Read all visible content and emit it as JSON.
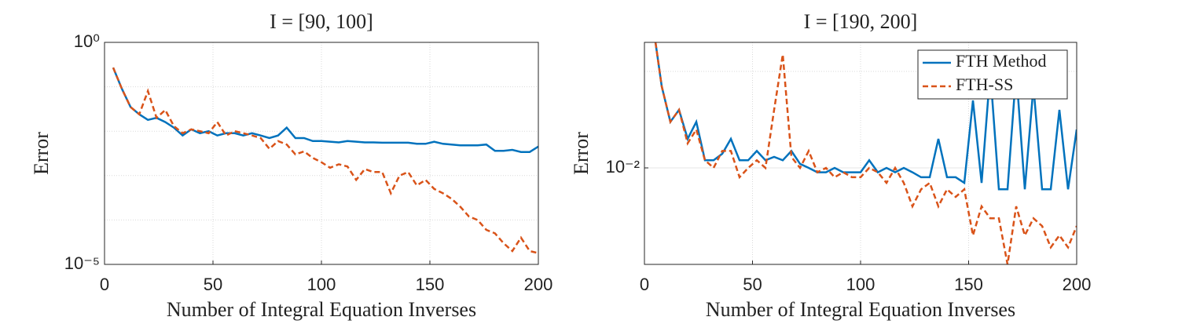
{
  "chart_data": [
    {
      "type": "line",
      "title": "I = [90, 100]",
      "xlabel": "Number of Integral Equation Inverses",
      "ylabel": "Error",
      "x": [
        4,
        8,
        12,
        16,
        20,
        24,
        28,
        32,
        36,
        40,
        44,
        48,
        52,
        56,
        60,
        64,
        68,
        72,
        76,
        80,
        84,
        88,
        92,
        96,
        100,
        104,
        108,
        112,
        116,
        120,
        124,
        128,
        132,
        136,
        140,
        144,
        148,
        152,
        156,
        160,
        164,
        168,
        172,
        176,
        180,
        184,
        188,
        192,
        196,
        200
      ],
      "series": [
        {
          "name": "FTH Method",
          "color": "#0072bd",
          "dash": false,
          "values": [
            0.27,
            0.09,
            0.035,
            0.024,
            0.018,
            0.02,
            0.016,
            0.012,
            0.008,
            0.011,
            0.009,
            0.01,
            0.008,
            0.009,
            0.009,
            0.008,
            0.009,
            0.008,
            0.007,
            0.008,
            0.012,
            0.007,
            0.007,
            0.006,
            0.006,
            0.0058,
            0.0056,
            0.006,
            0.0058,
            0.0056,
            0.0056,
            0.0055,
            0.0055,
            0.0055,
            0.0055,
            0.0052,
            0.0052,
            0.0058,
            0.0052,
            0.005,
            0.0048,
            0.0048,
            0.0048,
            0.005,
            0.0036,
            0.0036,
            0.0038,
            0.0034,
            0.0034,
            0.0045
          ]
        },
        {
          "name": "FTH-SS",
          "color": "#d95319",
          "dash": true,
          "values": [
            0.27,
            0.09,
            0.035,
            0.024,
            0.08,
            0.02,
            0.03,
            0.013,
            0.009,
            0.011,
            0.01,
            0.009,
            0.016,
            0.008,
            0.01,
            0.009,
            0.008,
            0.007,
            0.004,
            0.006,
            0.005,
            0.003,
            0.0035,
            0.0025,
            0.002,
            0.0015,
            0.0018,
            0.0016,
            0.0008,
            0.0014,
            0.0012,
            0.0012,
            0.0004,
            0.001,
            0.0012,
            0.0006,
            0.0008,
            0.0005,
            0.0004,
            0.0003,
            0.0002,
            0.00012,
            0.0001,
            6e-05,
            5e-05,
            3e-05,
            2e-05,
            4e-05,
            2e-05,
            1.8e-05
          ]
        }
      ],
      "xlim": [
        0,
        200
      ],
      "xticks": [
        0,
        50,
        100,
        150,
        200
      ],
      "ylim": [
        1e-05,
        1
      ],
      "yticks": [
        {
          "value": 1e-05,
          "label": "10⁻⁵"
        },
        {
          "value": 1,
          "label": "10⁰"
        }
      ],
      "yminor": [
        0.0001,
        0.001,
        0.01,
        0.1
      ],
      "log_scale": true,
      "grid": true
    },
    {
      "type": "line",
      "title": "I = [190, 200]",
      "xlabel": "Number of Integral Equation Inverses",
      "ylabel": "Error",
      "x": [
        4,
        8,
        12,
        16,
        20,
        24,
        28,
        32,
        36,
        40,
        44,
        48,
        52,
        56,
        60,
        64,
        68,
        72,
        76,
        80,
        84,
        88,
        92,
        96,
        100,
        104,
        108,
        112,
        116,
        120,
        124,
        128,
        132,
        136,
        140,
        144,
        148,
        152,
        156,
        160,
        164,
        168,
        172,
        176,
        180,
        184,
        188,
        192,
        196,
        200
      ],
      "series": [
        {
          "name": "FTH Method",
          "color": "#0072bd",
          "dash": false,
          "values": [
            0.3,
            0.07,
            0.03,
            0.04,
            0.02,
            0.03,
            0.012,
            0.012,
            0.014,
            0.02,
            0.012,
            0.012,
            0.015,
            0.012,
            0.013,
            0.012,
            0.015,
            0.011,
            0.01,
            0.009,
            0.009,
            0.01,
            0.009,
            0.009,
            0.009,
            0.012,
            0.009,
            0.01,
            0.009,
            0.01,
            0.009,
            0.008,
            0.008,
            0.02,
            0.008,
            0.008,
            0.007,
            0.05,
            0.007,
            0.1,
            0.006,
            0.006,
            0.1,
            0.006,
            0.07,
            0.006,
            0.006,
            0.04,
            0.006,
            0.025
          ]
        },
        {
          "name": "FTH-SS",
          "color": "#d95319",
          "dash": true,
          "values": [
            0.3,
            0.07,
            0.03,
            0.04,
            0.018,
            0.025,
            0.012,
            0.01,
            0.015,
            0.015,
            0.008,
            0.01,
            0.012,
            0.01,
            0.04,
            0.15,
            0.013,
            0.01,
            0.015,
            0.009,
            0.01,
            0.008,
            0.009,
            0.008,
            0.008,
            0.01,
            0.009,
            0.007,
            0.01,
            0.007,
            0.004,
            0.006,
            0.007,
            0.004,
            0.006,
            0.005,
            0.006,
            0.002,
            0.004,
            0.003,
            0.003,
            0.001,
            0.004,
            0.002,
            0.003,
            0.0025,
            0.0015,
            0.002,
            0.0015,
            0.0025
          ]
        }
      ],
      "xlim": [
        0,
        200
      ],
      "xticks": [
        0,
        50,
        100,
        150,
        200
      ],
      "ylim": [
        0.001,
        0.2
      ],
      "yticks": [
        {
          "value": 0.01,
          "label": "10⁻²"
        }
      ],
      "yminor": [
        0.1
      ],
      "log_scale": true,
      "grid": true,
      "legend": "northeast"
    }
  ]
}
